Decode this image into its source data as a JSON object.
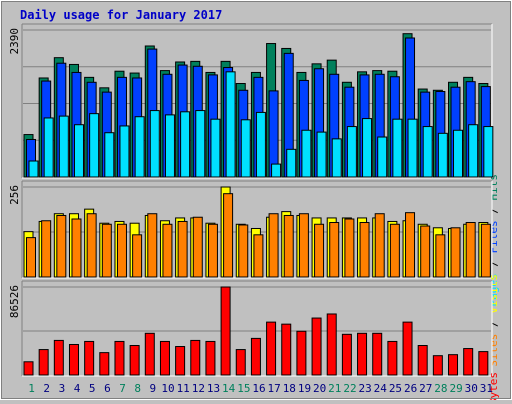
{
  "colors": {
    "page_bg": "#c0c0c0",
    "panel_bg": "#c0c0c0",
    "grid": "#808080",
    "title": "#0000c8",
    "hits": "#00805c",
    "files": "#0040ff",
    "pages": "#00e0ff",
    "visits": "#ffff00",
    "sites": "#ff8000",
    "kbytes": "#ff0000",
    "weekend_label": "#00805c",
    "weekday_label": "#000080"
  },
  "chart_data": {
    "type": "bar",
    "title": "Daily usage for January 2017",
    "categories": [
      "1",
      "2",
      "3",
      "4",
      "5",
      "6",
      "7",
      "8",
      "9",
      "10",
      "11",
      "12",
      "13",
      "14",
      "15",
      "16",
      "17",
      "18",
      "19",
      "20",
      "21",
      "22",
      "23",
      "24",
      "25",
      "26",
      "27",
      "28",
      "29",
      "30",
      "31"
    ],
    "weekend_days": [
      "1",
      "7",
      "8",
      "14",
      "15",
      "21",
      "22",
      "28",
      "29"
    ],
    "panels": [
      {
        "id": "hits_files_pages",
        "ymax_label": "2390",
        "ymax": 2390,
        "legend": [
          {
            "text": "Pages",
            "color": "#00e0ff"
          },
          {
            "text": " / ",
            "color": "#000000"
          },
          {
            "text": "Files",
            "color": "#0040ff"
          },
          {
            "text": " / ",
            "color": "#000000"
          },
          {
            "text": "Hits",
            "color": "#00805c"
          }
        ],
        "series": [
          {
            "name": "Hits",
            "color": "#00805c",
            "values": [
              690,
              1610,
              1940,
              1830,
              1620,
              1450,
              1720,
              1690,
              2130,
              1730,
              1870,
              1880,
              1700,
              1880,
              1520,
              1700,
              2170,
              2090,
              1700,
              1840,
              1900,
              1540,
              1710,
              1730,
              1720,
              2330,
              1430,
              1410,
              1540,
              1620,
              1520
            ]
          },
          {
            "name": "Files",
            "color": "#0040ff",
            "values": [
              610,
              1560,
              1850,
              1700,
              1540,
              1380,
              1620,
              1610,
              2080,
              1670,
              1820,
              1800,
              1660,
              1780,
              1410,
              1620,
              1400,
              2010,
              1570,
              1760,
              1670,
              1460,
              1660,
              1670,
              1630,
              2260,
              1380,
              1390,
              1460,
              1550,
              1470
            ]
          },
          {
            "name": "Pages",
            "color": "#00e0ff",
            "values": [
              260,
              960,
              990,
              850,
              1030,
              720,
              830,
              980,
              1080,
              1010,
              1060,
              1080,
              940,
              1710,
              930,
              1050,
              210,
              450,
              760,
              730,
              620,
              820,
              950,
              650,
              940,
              940,
              820,
              710,
              760,
              850,
              820
            ]
          }
        ]
      },
      {
        "id": "visits_sites",
        "ymax_label": "256",
        "ymax": 256,
        "legend": [
          {
            "text": "Sites",
            "color": "#ff8000"
          },
          {
            "text": " / ",
            "color": "#000000"
          },
          {
            "text": "Visits",
            "color": "#ffff00"
          }
        ],
        "series": [
          {
            "name": "Visits",
            "color": "#ffff00",
            "values": [
              129,
              158,
              180,
              180,
              193,
              153,
              158,
              153,
              175,
              160,
              168,
              168,
              153,
              256,
              150,
              138,
              170,
              186,
              175,
              168,
              168,
              168,
              168,
              168,
              158,
              160,
              150,
              140,
              138,
              150,
              155
            ]
          },
          {
            "name": "Sites",
            "color": "#ff8000",
            "values": [
              112,
              160,
              175,
              165,
              180,
              150,
              150,
              120,
              180,
              150,
              158,
              170,
              150,
              237,
              148,
              120,
              180,
              175,
              180,
              150,
              155,
              165,
              155,
              180,
              150,
              183,
              145,
              120,
              140,
              155,
              150
            ]
          }
        ]
      },
      {
        "id": "kbytes",
        "ymax_label": "86526",
        "ymax": 86526,
        "legend": [
          {
            "text": "KBytes",
            "color": "#ff0000"
          }
        ],
        "series": [
          {
            "name": "KBytes",
            "color": "#ff0000",
            "values": [
              13000,
              25000,
              34000,
              30000,
              33000,
              22000,
              33000,
              29000,
              41000,
              33000,
              28000,
              34000,
              33000,
              86526,
              25000,
              36000,
              52000,
              50000,
              43000,
              56000,
              60000,
              40000,
              41000,
              41000,
              33000,
              52000,
              29000,
              19000,
              20000,
              26000,
              23000
            ]
          }
        ]
      }
    ]
  }
}
